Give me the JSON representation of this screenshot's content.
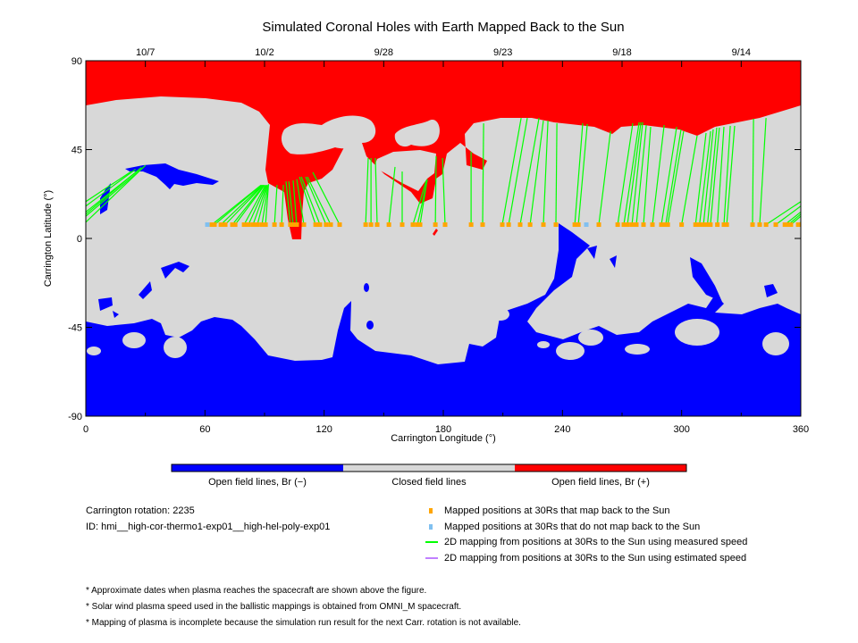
{
  "chart_data": {
    "type": "map",
    "title": "Simulated Coronal Holes with Earth Mapped Back to the Sun",
    "xlabel": "Carrington Longitude (°)",
    "ylabel": "Carrington Latitude (°)",
    "xlim": [
      0,
      360
    ],
    "ylim": [
      -90,
      90
    ],
    "x_ticks": [
      "0",
      "60",
      "120",
      "180",
      "240",
      "300",
      "360"
    ],
    "y_ticks": [
      "-90",
      "-45",
      "0",
      "45",
      "90"
    ],
    "top_dates": [
      {
        "lon": 30,
        "label": "10/7"
      },
      {
        "lon": 90,
        "label": "10/2"
      },
      {
        "lon": 150,
        "label": "9/28"
      },
      {
        "lon": 210,
        "label": "9/23"
      },
      {
        "lon": 270,
        "label": "9/18"
      },
      {
        "lon": 330,
        "label": "9/14"
      }
    ],
    "mapped_latitude": 7,
    "mapped_points": [
      [
        63.5,
        88.2,
        27
      ],
      [
        64.8,
        88.5,
        27
      ],
      [
        68,
        88.9,
        27
      ],
      [
        70.2,
        89.3,
        27
      ],
      [
        73.8,
        89.7,
        27
      ],
      [
        75.2,
        90,
        27
      ],
      [
        79.7,
        90.5,
        27
      ],
      [
        81.9,
        90.9,
        27
      ],
      [
        84.2,
        91.2,
        27
      ],
      [
        86.4,
        91.5,
        27
      ],
      [
        88.7,
        91.8,
        27
      ],
      [
        90.5,
        92,
        27.5
      ],
      [
        95,
        96.3,
        27.1
      ],
      [
        98.6,
        99.5,
        27.1
      ],
      [
        103,
        100.8,
        28.9
      ],
      [
        104.4,
        102.2,
        28.9
      ],
      [
        106.2,
        104.4,
        29.4
      ],
      [
        109.8,
        106.2,
        30
      ],
      [
        115.7,
        107.6,
        31.2
      ],
      [
        117.9,
        108.5,
        31.2
      ],
      [
        121,
        110.7,
        31.2
      ],
      [
        123.3,
        111.6,
        31.2
      ],
      [
        127.8,
        114.3,
        33.5
      ],
      [
        140.9,
        142.2,
        40.7
      ],
      [
        143.6,
        143.6,
        40.7
      ],
      [
        146.7,
        145.8,
        40.7
      ],
      [
        152.6,
        155.7,
        36.2
      ],
      [
        159.3,
        159.3,
        33.9
      ],
      [
        164.7,
        171.5,
        29.5
      ],
      [
        167,
        171.9,
        29.5
      ],
      [
        168.3,
        171.9,
        30
      ],
      [
        176,
        176.4,
        41.6
      ],
      [
        180.9,
        179.6,
        40.7
      ],
      [
        194,
        194,
        43.9
      ],
      [
        199.8,
        200.3,
        58.3
      ],
      [
        209.7,
        219.2,
        61
      ],
      [
        212.9,
        222.3,
        61
      ],
      [
        218.7,
        228.2,
        61
      ],
      [
        223.7,
        230.4,
        59.7
      ],
      [
        230.4,
        232.7,
        59.7
      ],
      [
        236.7,
        237.2,
        58.3
      ],
      [
        246.2,
        250.2,
        58.3
      ],
      [
        248,
        252.5,
        57.9
      ],
      [
        258.3,
        264.2,
        54.3
      ],
      [
        267.8,
        275.4,
        58.3
      ],
      [
        270.9,
        278.6,
        58.8
      ],
      [
        272.7,
        279.5,
        58.8
      ],
      [
        275,
        280.4,
        58.8
      ],
      [
        277.2,
        282.2,
        57.4
      ],
      [
        280.8,
        284.4,
        56.5
      ],
      [
        285.3,
        291.2,
        57.4
      ],
      [
        289.8,
        297.5,
        56.5
      ],
      [
        292,
        299.7,
        55.2
      ],
      [
        293,
        301,
        54.3
      ],
      [
        300,
        307.8,
        52
      ],
      [
        307,
        312.3,
        53.4
      ],
      [
        309,
        314.6,
        54.3
      ],
      [
        311,
        315.9,
        55.2
      ],
      [
        313,
        317.7,
        56.1
      ],
      [
        314.5,
        319,
        56.1
      ],
      [
        318,
        321.3,
        56.5
      ],
      [
        321.3,
        324.5,
        57
      ],
      [
        322.7,
        326.7,
        57
      ],
      [
        335.7,
        336.2,
        60.6
      ],
      [
        339.3,
        342.5,
        61
      ],
      [
        342.5,
        383,
        34
      ],
      [
        347.4,
        385,
        35
      ],
      [
        352,
        387,
        35
      ],
      [
        353.7,
        388,
        36
      ],
      [
        355,
        389,
        36
      ],
      [
        358.7,
        390,
        37
      ]
    ],
    "unmapped_points": [
      61.2,
      252
    ],
    "colorbar": [
      {
        "label": "Open field lines, Br (−)",
        "color": "#0000ff"
      },
      {
        "label": "Closed field lines",
        "color": "#d8d8d8"
      },
      {
        "label": "Open field lines, Br (+)",
        "color": "#ff0000"
      }
    ]
  },
  "info": {
    "rotation": "Carrington rotation: 2235",
    "id": "ID: hmi__high-cor-thermo1-exp01__high-hel-poly-exp01"
  },
  "legend": [
    {
      "label": "Mapped positions at 30Rs that map back to the Sun",
      "color": "#ffa500",
      "kind": "square"
    },
    {
      "label": "Mapped positions at 30Rs that do not map back to the Sun",
      "color": "#80c0f0",
      "kind": "square"
    },
    {
      "label": "2D mapping from positions at 30Rs to the Sun using measured speed",
      "color": "#00ff00",
      "kind": "line"
    },
    {
      "label": "2D mapping from positions at 30Rs to the Sun using estimated speed",
      "color": "#c080ff",
      "kind": "line"
    }
  ],
  "notes": [
    "* Approximate dates when plasma reaches the spacecraft are shown above the figure.",
    "* Solar wind plasma speed used in the ballistic mappings is obtained from OMNI_M spacecraft.",
    "* Mapping of plasma is incomplete because the simulation run result for the next Carr. rotation is not available."
  ]
}
